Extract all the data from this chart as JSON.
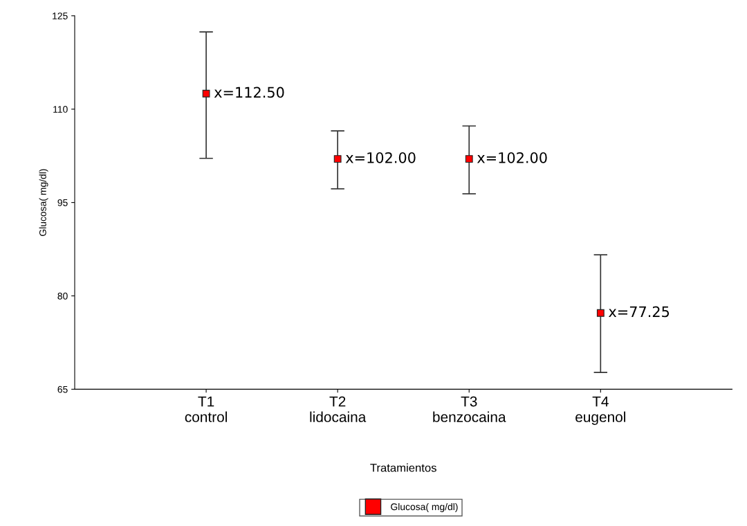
{
  "chart_data": {
    "type": "scatter",
    "xlabel": "Tratamientos",
    "ylabel": "Glucosa( mg/dl)",
    "categories": [
      "T1\ncontrol",
      "T2\nlidocaina",
      "T3\nbenzocaina",
      "T4\neugenol"
    ],
    "series": [
      {
        "name": "Glucosa( mg/dl)",
        "color": "#ff0000",
        "values": [
          112.5,
          102.0,
          102.0,
          77.25
        ],
        "errors": [
          [
            102.1,
            122.4
          ],
          [
            97.2,
            106.5
          ],
          [
            96.4,
            107.3
          ],
          [
            67.7,
            86.6
          ]
        ],
        "value_labels": [
          "x=112.50",
          "x=102.00",
          "x=102.00",
          "x=77.25"
        ]
      }
    ],
    "ylim": [
      65,
      125
    ],
    "yticks": [
      65,
      80,
      95,
      110,
      125
    ],
    "marker": "square",
    "grid": false,
    "legend": "bottom"
  }
}
